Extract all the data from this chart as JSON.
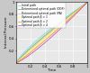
{
  "title": "",
  "xlabel": "Time",
  "ylabel": "Internal Pressure",
  "xlim": [
    0,
    1.0
  ],
  "ylim": [
    0,
    1.0
  ],
  "background_color": "#c8c8c8",
  "axes_facecolor": "#e8e8e8",
  "legend_entries": [
    {
      "label": "Initial path",
      "color": "#66dddd",
      "lw": 0.5,
      "ls": "-"
    },
    {
      "label": "Determined optimal path (ODP)",
      "color": "#44bb44",
      "lw": 0.5,
      "ls": "-"
    },
    {
      "label": "Determined optimal path (PA)",
      "color": "#ffaaaa",
      "lw": 0.5,
      "ls": "-"
    },
    {
      "label": "Optimal path β = 1",
      "color": "#ffff44",
      "lw": 0.5,
      "ls": "-"
    },
    {
      "label": "Optimal path β = 2",
      "color": "#ff8800",
      "lw": 0.5,
      "ls": "-"
    },
    {
      "label": "Optimal path β = 4",
      "color": "#bb44bb",
      "lw": 0.5,
      "ls": "-"
    }
  ],
  "grid_color": "#ffffff",
  "xtick_labels": [
    "0.2",
    "0.4",
    "0.6",
    "0.8",
    "1"
  ],
  "ytick_labels": [
    "0.2",
    "0.4",
    "0.6",
    "0.8",
    "1"
  ],
  "xticks": [
    0.2,
    0.4,
    0.6,
    0.8,
    1.0
  ],
  "yticks": [
    0.2,
    0.4,
    0.6,
    0.8,
    1.0
  ],
  "curve_exponents": [
    0.8,
    0.88,
    0.94,
    1.0,
    1.1,
    1.22
  ]
}
